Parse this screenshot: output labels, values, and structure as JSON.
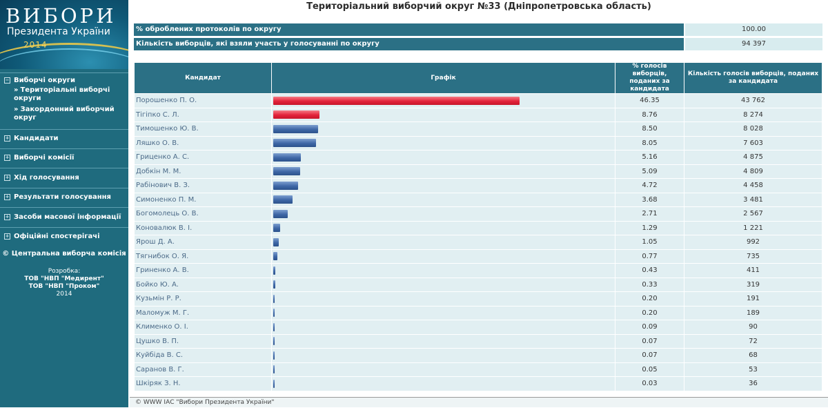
{
  "logo": {
    "line1": "ВИБОРИ",
    "line2": "Президента України",
    "year": "2014"
  },
  "sidebar": {
    "section_elections": "Виборчі округи",
    "sub_territorial": "Територіальні виборчі округи",
    "sub_foreign": "Закордонний виборчий округ",
    "candidates": "Кандидати",
    "commissions": "Виборчі комісії",
    "voting_progress": "Хід голосування",
    "results": "Результати голосування",
    "media": "Засоби масової інформації",
    "observers": "Офіційні спостерігачі",
    "copyright": "© Центральна виборча комісія",
    "dev_label": "Розробка:",
    "dev1": "ТОВ \"НВП \"Медирент\"",
    "dev2": "ТОВ \"НВП \"Проком\"",
    "dev_year": "2014"
  },
  "page_title": "Територіальний виборчий округ №33 (Дніпропетровська область)",
  "summary": {
    "protocols_label": "% оброблених протоколів по округу",
    "protocols_value": "100.00",
    "turnout_label": "Кількість виборців, які взяли участь у голосуванні по округу",
    "turnout_value": "94 397"
  },
  "table": {
    "headers": {
      "candidate": "Кандидат",
      "chart": "Графік",
      "percent": "% голосів виборців, поданих за кандидата",
      "votes": "Кількість голосів виборців, поданих за кандидата"
    },
    "rows": [
      {
        "name": "Порошенко П. О.",
        "percent": "46.35",
        "votes": "43 762"
      },
      {
        "name": "Тігіпко С. Л.",
        "percent": "8.76",
        "votes": "8 274"
      },
      {
        "name": "Тимошенко Ю. В.",
        "percent": "8.50",
        "votes": "8 028"
      },
      {
        "name": "Ляшко О. В.",
        "percent": "8.05",
        "votes": "7 603"
      },
      {
        "name": "Гриценко А. С.",
        "percent": "5.16",
        "votes": "4 875"
      },
      {
        "name": "Добкін М. М.",
        "percent": "5.09",
        "votes": "4 809"
      },
      {
        "name": "Рабінович В. З.",
        "percent": "4.72",
        "votes": "4 458"
      },
      {
        "name": "Симоненко П. М.",
        "percent": "3.68",
        "votes": "3 481"
      },
      {
        "name": "Богомолець О. В.",
        "percent": "2.71",
        "votes": "2 567"
      },
      {
        "name": "Коновалюк В. І.",
        "percent": "1.29",
        "votes": "1 221"
      },
      {
        "name": "Ярош Д. А.",
        "percent": "1.05",
        "votes": "992"
      },
      {
        "name": "Тягнибок О. Я.",
        "percent": "0.77",
        "votes": "735"
      },
      {
        "name": "Гриненко А. В.",
        "percent": "0.43",
        "votes": "411"
      },
      {
        "name": "Бойко Ю. А.",
        "percent": "0.33",
        "votes": "319"
      },
      {
        "name": "Кузьмін Р. Р.",
        "percent": "0.20",
        "votes": "191"
      },
      {
        "name": "Маломуж М. Г.",
        "percent": "0.20",
        "votes": "189"
      },
      {
        "name": "Клименко О. І.",
        "percent": "0.09",
        "votes": "90"
      },
      {
        "name": "Цушко В. П.",
        "percent": "0.07",
        "votes": "72"
      },
      {
        "name": "Куйбіда В. С.",
        "percent": "0.07",
        "votes": "68"
      },
      {
        "name": "Саранов В. Г.",
        "percent": "0.05",
        "votes": "53"
      },
      {
        "name": "Шкіряк З. Н.",
        "percent": "0.03",
        "votes": "36"
      }
    ]
  },
  "colors": {
    "top_bars": "#e3233a",
    "other_bars": "#3e67a6",
    "header_bg": "#2b7085",
    "sidebar_bg": "#1f6b7e"
  },
  "footer": "© WWW ІАС \"Вибори Президента України\""
}
